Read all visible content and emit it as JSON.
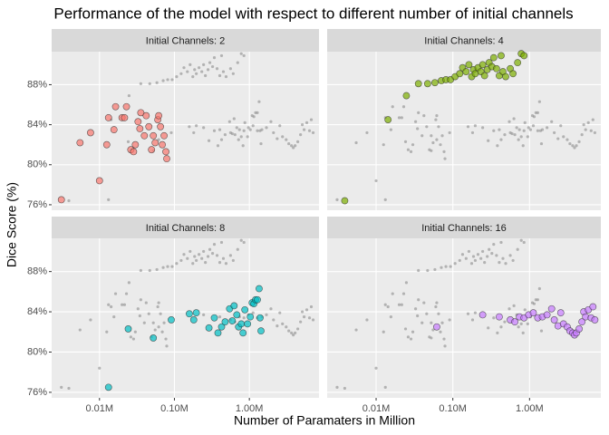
{
  "chart_data": {
    "type": "scatter",
    "title": "Performance of the model with respect to different number of initial channels",
    "xlabel": "Number of Paramaters in Million",
    "ylabel": "Dice Score (%)",
    "log_x": true,
    "grid": true,
    "others_color": "#8c8c8c",
    "xlim": [
      0.0023,
      8.5
    ],
    "ylim": [
      75.45,
      91.3
    ],
    "xticks": [
      {
        "value": 0.01,
        "label": "0.01M"
      },
      {
        "value": 0.1,
        "label": "0.10M"
      },
      {
        "value": 1,
        "label": "1.00M"
      }
    ],
    "yticks": [
      {
        "value": 76,
        "label": "76%"
      },
      {
        "value": 80,
        "label": "80%"
      },
      {
        "value": 84,
        "label": "84%"
      },
      {
        "value": 88,
        "label": "88%"
      }
    ],
    "series": [
      {
        "name": "Initial Channels: 2",
        "color": "#F8766D",
        "x": [
          0.0031,
          0.0055,
          0.0076,
          0.01,
          0.0125,
          0.0132,
          0.0156,
          0.0164,
          0.02,
          0.0216,
          0.0229,
          0.0262,
          0.0285,
          0.0301,
          0.0327,
          0.0346,
          0.0356,
          0.0397,
          0.042,
          0.0456,
          0.0495,
          0.0523,
          0.0553,
          0.06,
          0.0617,
          0.0652,
          0.0689,
          0.0728,
          0.0769,
          0.079
        ],
        "values": [
          76.5,
          82.2,
          83.2,
          78.4,
          82.0,
          84.7,
          83.5,
          85.8,
          84.7,
          84.7,
          85.8,
          81.5,
          81.3,
          82.0,
          84.3,
          83.6,
          85.2,
          82.9,
          84.9,
          83.8,
          81.5,
          82.9,
          82.2,
          84.5,
          84.9,
          83.8,
          82.0,
          82.9,
          81.3,
          80.6
        ]
      },
      {
        "name": "Initial Channels: 4",
        "color": "#7CAE00",
        "x": [
          0.0039,
          0.0143,
          0.0248,
          0.0356,
          0.0469,
          0.0584,
          0.0708,
          0.0813,
          0.0933,
          0.107,
          0.123,
          0.134,
          0.149,
          0.162,
          0.176,
          0.186,
          0.196,
          0.213,
          0.232,
          0.245,
          0.259,
          0.281,
          0.297,
          0.323,
          0.341,
          0.371,
          0.403,
          0.426,
          0.45,
          0.489,
          0.561,
          0.609,
          0.699,
          0.78,
          0.847
        ],
        "values": [
          76.4,
          84.5,
          86.9,
          88.1,
          88.1,
          88.2,
          88.4,
          88.5,
          88.5,
          88.8,
          89.1,
          89.7,
          89.3,
          90.0,
          88.8,
          89.5,
          89.1,
          89.7,
          89.3,
          90.0,
          88.9,
          89.5,
          90.2,
          89.8,
          90.7,
          89.6,
          88.9,
          90.9,
          89.3,
          88.8,
          89.6,
          89.1,
          90.2,
          91.1,
          90.9
        ]
      },
      {
        "name": "Initial Channels: 8",
        "color": "#00BFC4",
        "x": [
          0.0132,
          0.0242,
          0.0523,
          0.0908,
          0.158,
          0.181,
          0.196,
          0.289,
          0.341,
          0.381,
          0.426,
          0.475,
          0.545,
          0.592,
          0.626,
          0.68,
          0.718,
          0.78,
          0.824,
          0.871,
          0.946,
          1.03,
          1.09,
          1.15,
          1.21,
          1.28,
          1.35,
          1.39,
          1.43
        ],
        "values": [
          76.5,
          82.3,
          81.4,
          83.2,
          83.8,
          83.2,
          83.9,
          82.4,
          83.4,
          81.9,
          82.5,
          83.0,
          84.3,
          83.1,
          84.6,
          83.7,
          82.5,
          82.8,
          81.9,
          84.2,
          82.8,
          83.5,
          84.9,
          84.8,
          85.2,
          85.2,
          86.3,
          83.4,
          82.1
        ]
      },
      {
        "name": "Initial Channels: 16",
        "color": "#C77CFF",
        "x": [
          0.0617,
          0.245,
          0.403,
          0.561,
          0.643,
          0.738,
          0.847,
          0.973,
          1.12,
          1.28,
          1.47,
          1.69,
          1.94,
          2.1,
          2.35,
          2.55,
          2.77,
          3.1,
          3.36,
          3.65,
          3.86,
          4.08,
          4.43,
          4.82,
          5.09,
          5.38,
          5.84,
          6.35,
          6.71,
          7.1
        ],
        "values": [
          82.5,
          83.7,
          83.5,
          83.2,
          83.0,
          83.5,
          83.4,
          83.7,
          83.9,
          83.4,
          83.5,
          83.7,
          84.3,
          83.2,
          82.6,
          83.9,
          82.8,
          82.5,
          82.1,
          81.9,
          81.7,
          81.9,
          82.3,
          83.0,
          84.0,
          83.5,
          84.2,
          83.4,
          84.5,
          83.2
        ]
      }
    ]
  }
}
